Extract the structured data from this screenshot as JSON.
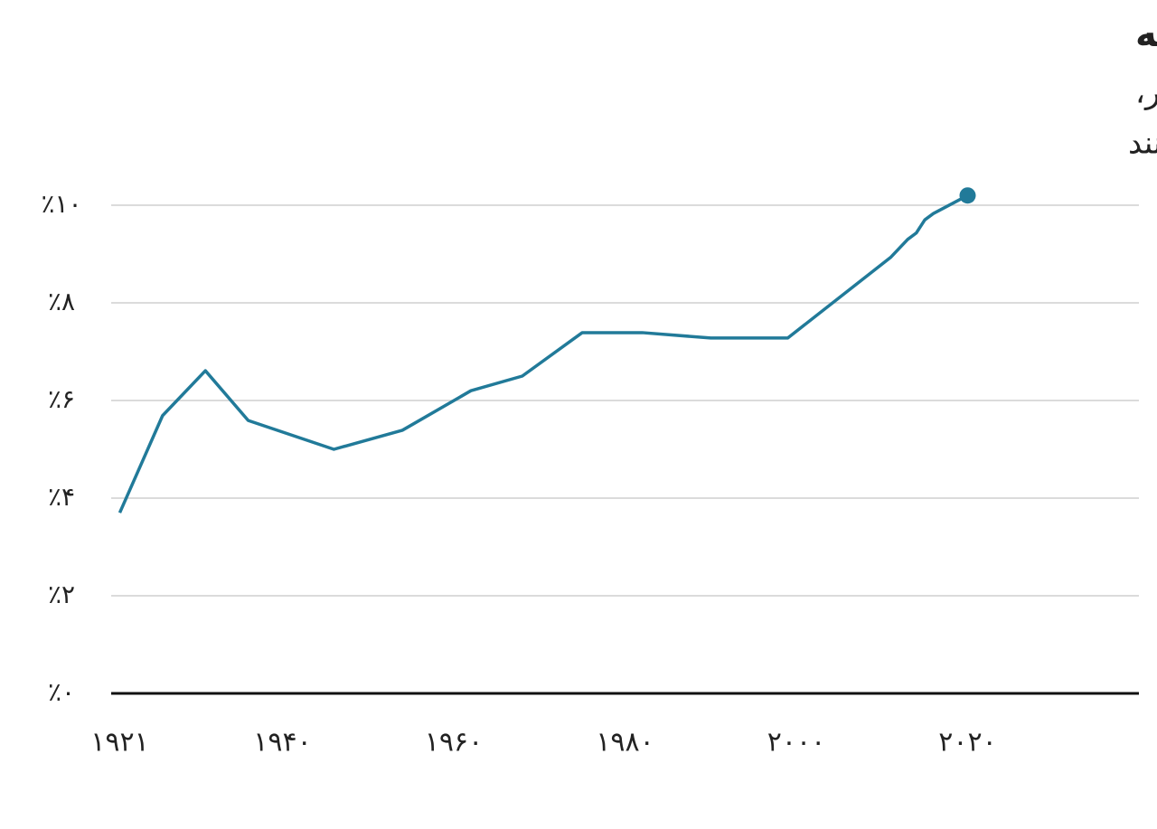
{
  "chart_data": {
    "type": "line",
    "title": "جمعیت مهاجر فرانسه",
    "subtitle": [
      "درصد جمعیت متولد شده به عنوان یک خارجی در خارج از کشور،",
      "که هم اکنون در فرانسه ساکنند"
    ],
    "x": [
      1921,
      1926,
      1931,
      1936,
      1946,
      1954,
      1962,
      1968,
      1975,
      1982,
      1990,
      1999,
      2011,
      2013,
      2014,
      2015,
      2016,
      2020
    ],
    "series": [
      {
        "color": "#217a99",
        "values": [
          3.7,
          5.69,
          6.61,
          5.59,
          5.0,
          5.39,
          6.2,
          6.5,
          7.39,
          7.39,
          7.28,
          7.28,
          8.93,
          9.3,
          9.43,
          9.7,
          9.83,
          10.2
        ]
      }
    ],
    "xlim": [
      1920,
      2040
    ],
    "xticks": [
      {
        "value": 1921,
        "label": "۱۹۲۱"
      },
      {
        "value": 1940,
        "label": "۱۹۴۰"
      },
      {
        "value": 1960,
        "label": "۱۹۶۰"
      },
      {
        "value": 1980,
        "label": "۱۹۸۰"
      },
      {
        "value": 2000,
        "label": "۲۰۰۰"
      },
      {
        "value": 2020,
        "label": "۲۰۲۰"
      }
    ],
    "ylim": [
      0,
      10.5
    ],
    "yticks": [
      {
        "value": 0,
        "label": "٪۰"
      },
      {
        "value": 2,
        "label": "٪۲"
      },
      {
        "value": 4,
        "label": "٪۴"
      },
      {
        "value": 6,
        "label": "٪۶"
      },
      {
        "value": 8,
        "label": "٪۸"
      },
      {
        "value": 10,
        "label": "٪۱۰"
      }
    ],
    "grid": true
  }
}
